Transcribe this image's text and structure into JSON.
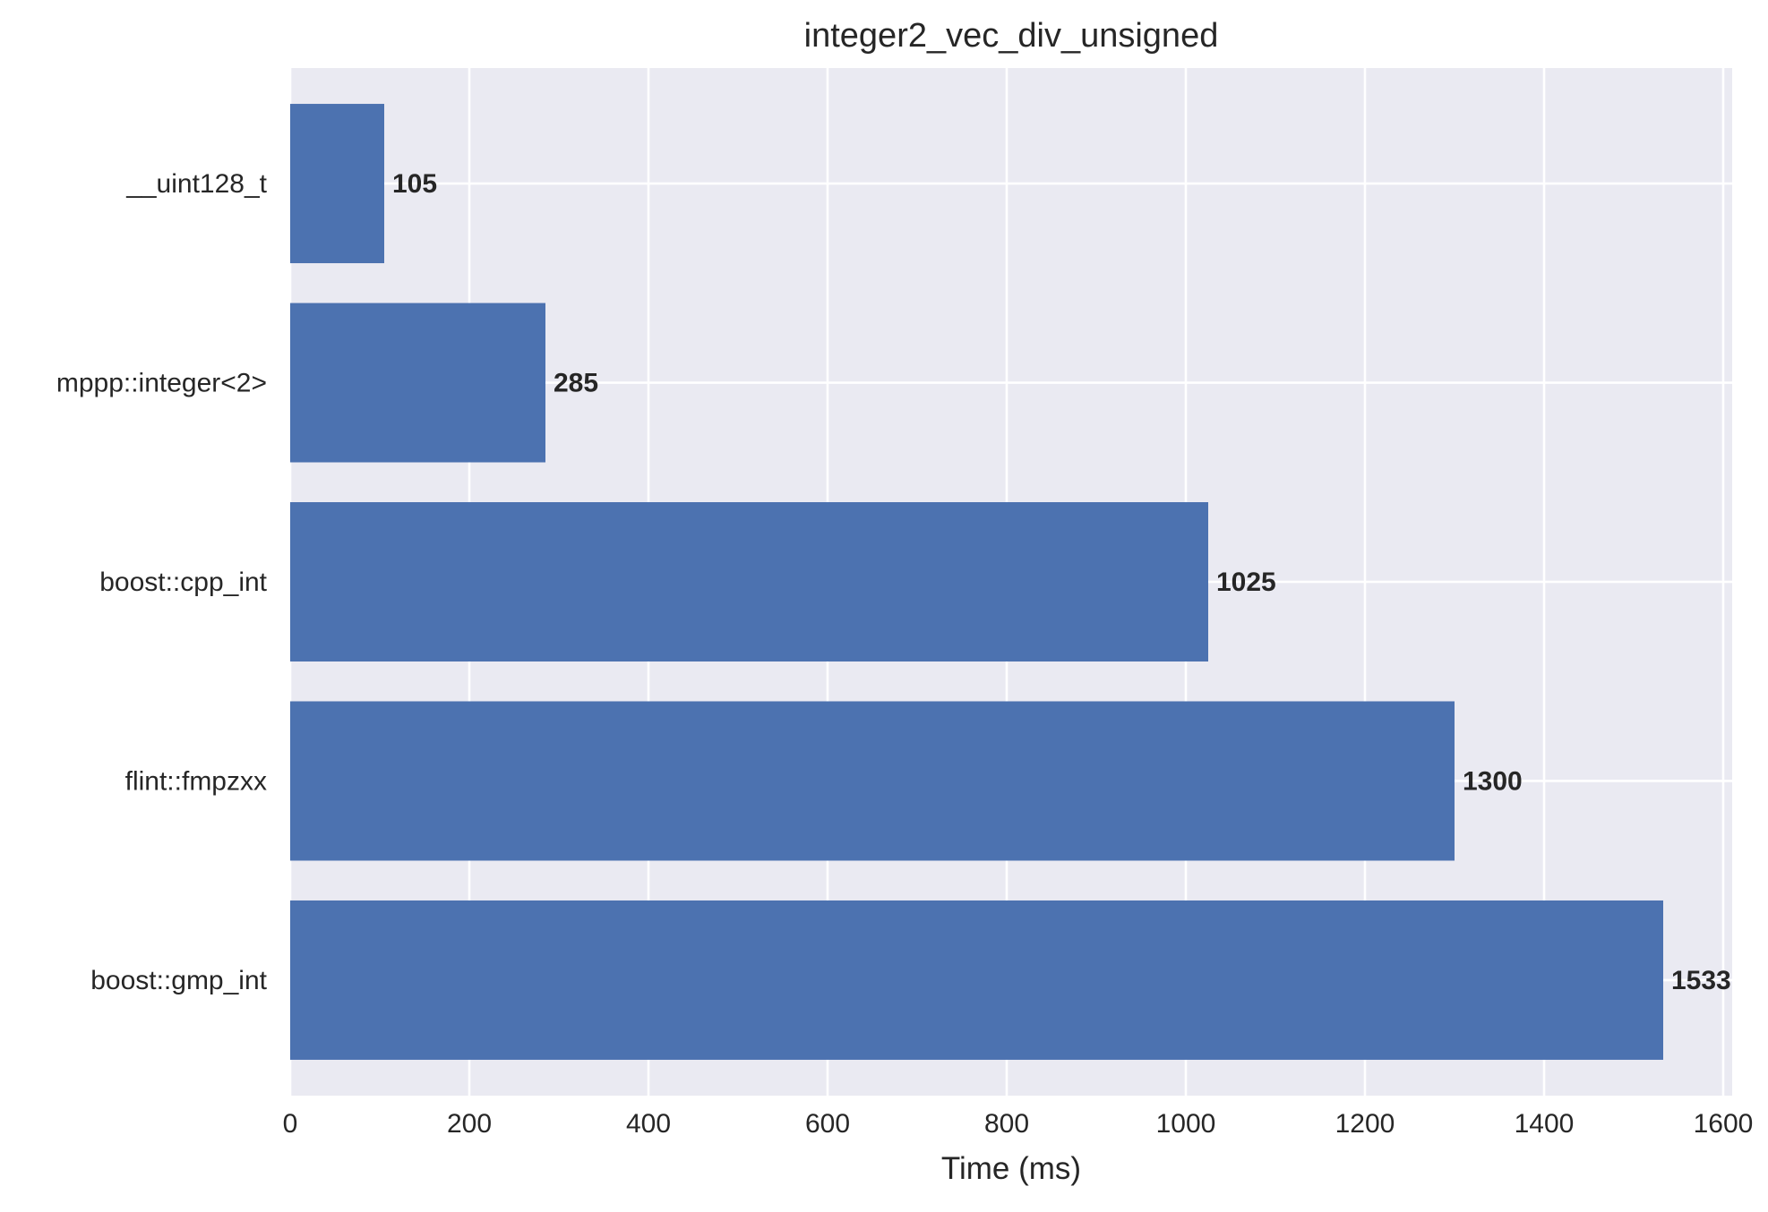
{
  "chart_data": {
    "type": "bar",
    "orientation": "horizontal",
    "title": "integer2_vec_div_unsigned",
    "xlabel": "Time (ms)",
    "ylabel": "",
    "categories": [
      "__uint128_t",
      "mppp::integer<2>",
      "boost::cpp_int",
      "flint::fmpzxx",
      "boost::gmp_int"
    ],
    "values": [
      105,
      285,
      1025,
      1300,
      1533
    ],
    "value_labels": [
      "105",
      "285",
      "1025",
      "1300",
      "1533"
    ],
    "xlim": [
      0,
      1610
    ],
    "xticks": [
      0,
      200,
      400,
      600,
      800,
      1000,
      1200,
      1400,
      1600
    ],
    "xtick_labels": [
      "0",
      "200",
      "400",
      "600",
      "800",
      "1000",
      "1200",
      "1400",
      "1600"
    ],
    "grid": true,
    "bar_color": "#4c72b0",
    "background_color": "#eaeaf2",
    "grid_color": "#ffffff"
  }
}
